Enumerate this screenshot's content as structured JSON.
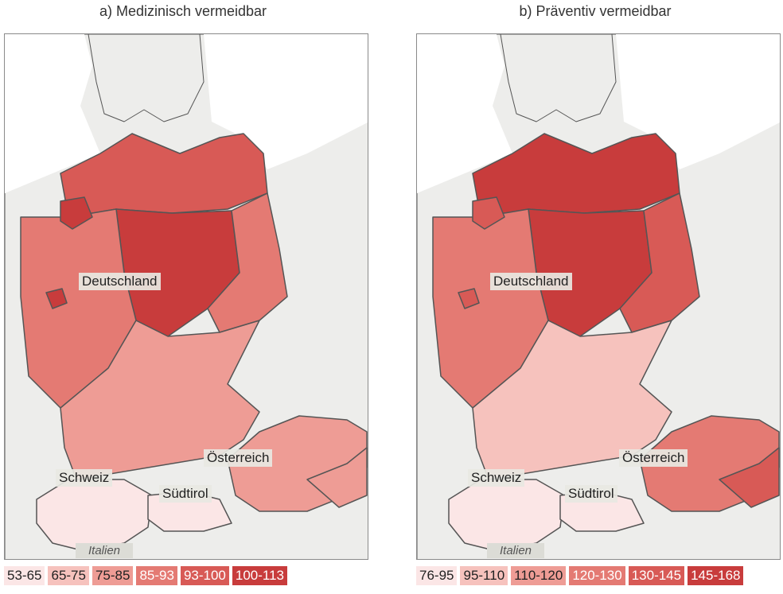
{
  "panels": [
    {
      "title": "a) Medizinisch vermeidbar",
      "labels": {
        "germany": "Deutschland",
        "austria": "Österreich",
        "switzerland": "Schweiz",
        "south_tyrol": "Südtirol",
        "italy": "Italien"
      },
      "legend": [
        {
          "label": "53-65",
          "color": "#fbe6e6",
          "text_color": "#222222"
        },
        {
          "label": "65-75",
          "color": "#f6c2bd",
          "text_color": "#222222"
        },
        {
          "label": "75-85",
          "color": "#ee9c95",
          "text_color": "#222222"
        },
        {
          "label": "85-93",
          "color": "#e47a73",
          "text_color": "#ffffff"
        },
        {
          "label": "93-100",
          "color": "#d85a56",
          "text_color": "#ffffff"
        },
        {
          "label": "100-113",
          "color": "#c83c3c",
          "text_color": "#ffffff"
        }
      ],
      "region_classes": {
        "germany_north": 4,
        "germany_center_east": 3,
        "germany_core": 5,
        "germany_west": 3,
        "germany_south": 2,
        "austria": 2,
        "austria_east": 2,
        "switzerland": 0,
        "south_tyrol": 0,
        "hotspot_west": 5,
        "hotspot_northwest": 5
      }
    },
    {
      "title": "b) Präventiv vermeidbar",
      "labels": {
        "germany": "Deutschland",
        "austria": "Österreich",
        "switzerland": "Schweiz",
        "south_tyrol": "Südtirol",
        "italy": "Italien"
      },
      "legend": [
        {
          "label": "76-95",
          "color": "#fbe6e6",
          "text_color": "#222222"
        },
        {
          "label": "95-110",
          "color": "#f6c2bd",
          "text_color": "#222222"
        },
        {
          "label": "110-120",
          "color": "#ee9c95",
          "text_color": "#222222"
        },
        {
          "label": "120-130",
          "color": "#e47a73",
          "text_color": "#ffffff"
        },
        {
          "label": "130-145",
          "color": "#d85a56",
          "text_color": "#ffffff"
        },
        {
          "label": "145-168",
          "color": "#c83c3c",
          "text_color": "#ffffff"
        }
      ],
      "region_classes": {
        "germany_north": 5,
        "germany_center_east": 4,
        "germany_core": 5,
        "germany_west": 3,
        "germany_south": 1,
        "austria": 3,
        "austria_east": 4,
        "switzerland": 0,
        "south_tyrol": 0,
        "hotspot_west": 4,
        "hotspot_northwest": 4
      }
    }
  ],
  "colors": {
    "land_outside": "#ededeb",
    "sea": "#ffffff",
    "border": "#555555"
  }
}
